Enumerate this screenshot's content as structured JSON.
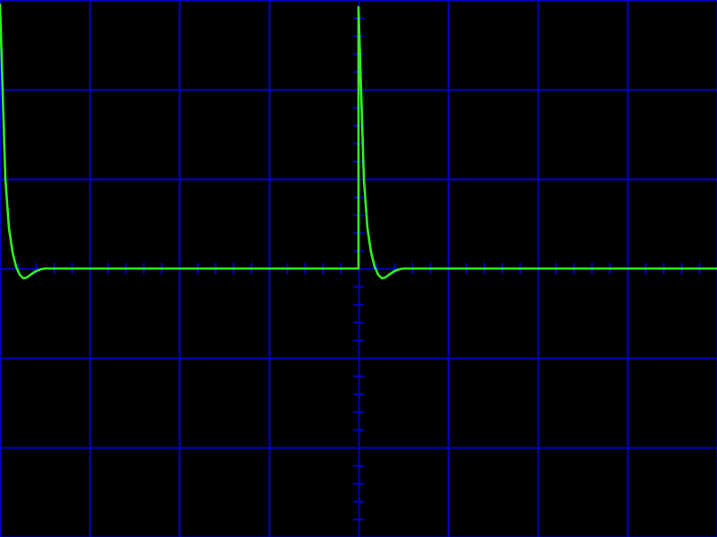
{
  "chart_data": {
    "type": "line",
    "title": "",
    "xlabel": "",
    "ylabel": "",
    "xlim": [
      -4,
      4
    ],
    "ylim": [
      -3,
      3
    ],
    "grid": true,
    "x_divisions": 8,
    "y_divisions": 6,
    "minor_ticks_per_division": 5,
    "colors": {
      "background": "#000000",
      "grid": "#0000c8",
      "trace": "#33ee22"
    },
    "series": [
      {
        "x": [
          -4.0,
          -3.94,
          -3.9,
          -3.86,
          -3.82,
          -3.78,
          -3.74,
          -3.7,
          -3.66,
          -3.6,
          -3.55,
          -3.5,
          -3.4,
          -3.2,
          -2.0,
          0.0,
          0.0,
          0.06,
          0.1,
          0.14,
          0.18,
          0.22,
          0.26,
          0.3,
          0.34,
          0.4,
          0.45,
          0.5,
          0.6,
          0.8,
          2.0,
          4.0
        ],
        "y": [
          2.95,
          1.0,
          0.45,
          0.18,
          0.02,
          -0.07,
          -0.11,
          -0.1,
          -0.07,
          -0.03,
          -0.01,
          0.0,
          0.0,
          0.0,
          0.0,
          0.0,
          2.92,
          1.0,
          0.45,
          0.18,
          0.02,
          -0.07,
          -0.11,
          -0.1,
          -0.07,
          -0.03,
          -0.01,
          0.0,
          0.0,
          0.0,
          0.0,
          0.0
        ]
      }
    ]
  }
}
